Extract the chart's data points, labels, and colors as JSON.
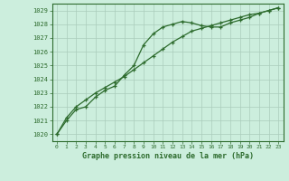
{
  "title": "Graphe pression niveau de la mer (hPa)",
  "bg_color": "#cceedd",
  "grid_color": "#aaccbb",
  "line_color": "#2d6b2d",
  "xlim": [
    -0.5,
    23.5
  ],
  "ylim": [
    1019.5,
    1029.5
  ],
  "yticks": [
    1020,
    1021,
    1022,
    1023,
    1024,
    1025,
    1026,
    1027,
    1028,
    1029
  ],
  "xticks": [
    0,
    1,
    2,
    3,
    4,
    5,
    6,
    7,
    8,
    9,
    10,
    11,
    12,
    13,
    14,
    15,
    16,
    17,
    18,
    19,
    20,
    21,
    22,
    23
  ],
  "series1_x": [
    0,
    1,
    2,
    3,
    4,
    5,
    6,
    7,
    8,
    9,
    10,
    11,
    12,
    13,
    14,
    15,
    16,
    17,
    18,
    19,
    20,
    21,
    22,
    23
  ],
  "series1_y": [
    1020.0,
    1021.0,
    1021.8,
    1022.0,
    1022.7,
    1023.2,
    1023.5,
    1024.3,
    1025.0,
    1026.5,
    1027.3,
    1027.8,
    1028.0,
    1028.2,
    1028.1,
    1027.9,
    1027.8,
    1027.8,
    1028.1,
    1028.3,
    1028.5,
    1028.8,
    1029.0,
    1029.2
  ],
  "series2_x": [
    0,
    1,
    2,
    3,
    4,
    5,
    6,
    7,
    8,
    9,
    10,
    11,
    12,
    13,
    14,
    15,
    16,
    17,
    18,
    19,
    20,
    21,
    22,
    23
  ],
  "series2_y": [
    1020.0,
    1021.2,
    1022.0,
    1022.5,
    1023.0,
    1023.4,
    1023.8,
    1024.2,
    1024.7,
    1025.2,
    1025.7,
    1026.2,
    1026.7,
    1027.1,
    1027.5,
    1027.7,
    1027.9,
    1028.1,
    1028.3,
    1028.5,
    1028.7,
    1028.8,
    1029.0,
    1029.2
  ]
}
